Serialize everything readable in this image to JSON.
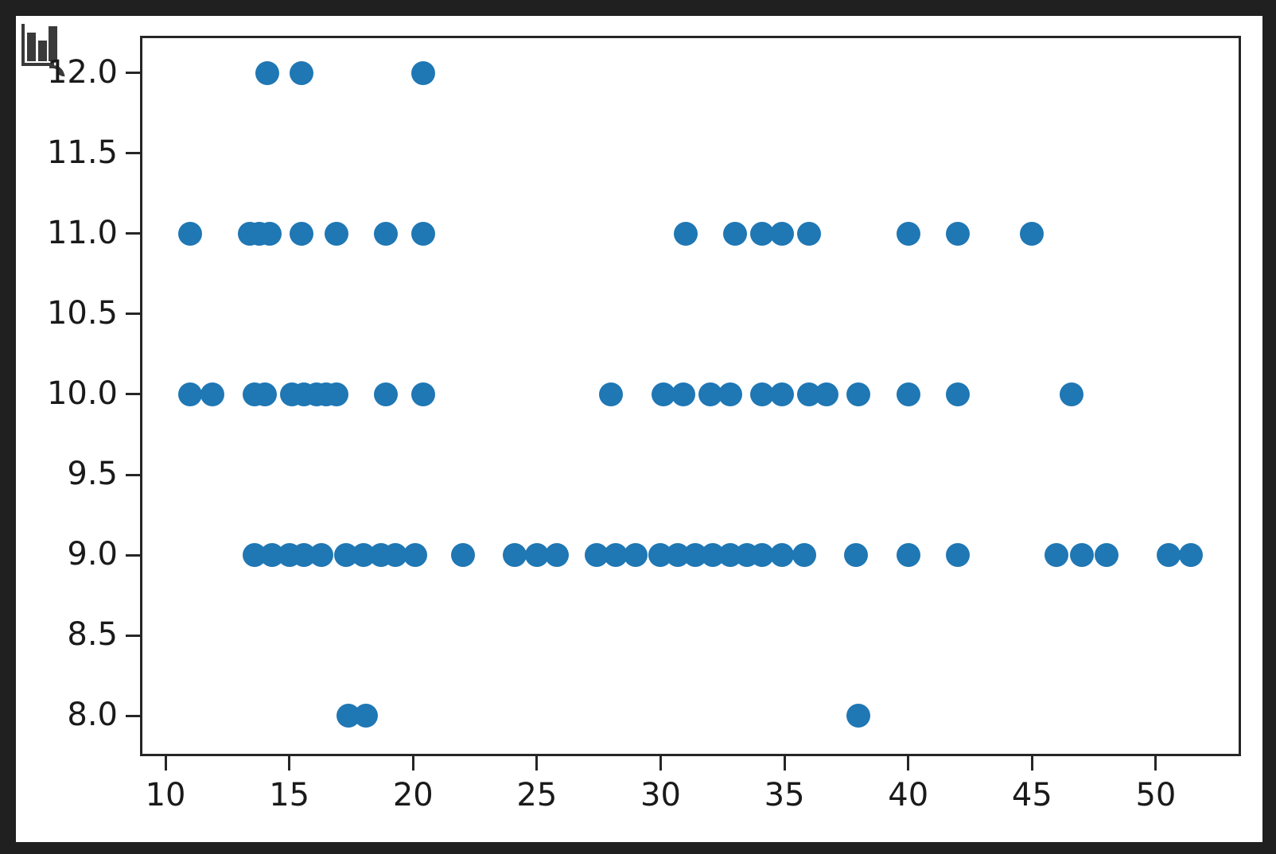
{
  "window": {
    "background_color": "#202020",
    "figure_background_color": "#ffffff"
  },
  "icon": {
    "name": "bar-chart-icon",
    "color": "#3a3a3a"
  },
  "chart_data": {
    "type": "scatter",
    "title": "",
    "xlabel": "",
    "ylabel": "",
    "legend": null,
    "grid": false,
    "marker_color": "#1f77b4",
    "marker_size_px": 30,
    "axis_color": "#262626",
    "tick_label_color": "#1a1a1a",
    "xlim": [
      8.97,
      53.44
    ],
    "ylim": [
      7.75,
      12.23
    ],
    "x_tick_values": [
      10,
      15,
      20,
      25,
      30,
      35,
      40,
      45,
      50
    ],
    "x_tick_labels": [
      "10",
      "15",
      "20",
      "25",
      "30",
      "35",
      "40",
      "45",
      "50"
    ],
    "y_tick_values": [
      8.0,
      8.5,
      9.0,
      9.5,
      10.0,
      10.5,
      11.0,
      11.5,
      12.0
    ],
    "y_tick_labels": [
      "8.0",
      "8.5",
      "9.0",
      "9.5",
      "10.0",
      "10.5",
      "11.0",
      "11.5",
      "12.0"
    ],
    "points": [
      [
        14.1,
        12
      ],
      [
        15.5,
        12
      ],
      [
        20.4,
        12
      ],
      [
        11,
        11
      ],
      [
        13.4,
        11
      ],
      [
        13.8,
        11
      ],
      [
        14.2,
        11
      ],
      [
        15.5,
        11
      ],
      [
        16.9,
        11
      ],
      [
        18.9,
        11
      ],
      [
        20.4,
        11
      ],
      [
        31,
        11
      ],
      [
        33,
        11
      ],
      [
        34.1,
        11
      ],
      [
        34.9,
        11
      ],
      [
        36,
        11
      ],
      [
        40,
        11
      ],
      [
        42,
        11
      ],
      [
        45,
        11
      ],
      [
        11,
        10
      ],
      [
        11.9,
        10
      ],
      [
        13.6,
        10
      ],
      [
        14,
        10
      ],
      [
        15.1,
        10
      ],
      [
        15.6,
        10
      ],
      [
        16.1,
        10
      ],
      [
        16.5,
        10
      ],
      [
        16.9,
        10
      ],
      [
        18.9,
        10
      ],
      [
        20.4,
        10
      ],
      [
        28,
        10
      ],
      [
        30.1,
        10
      ],
      [
        30.9,
        10
      ],
      [
        32,
        10
      ],
      [
        32.8,
        10
      ],
      [
        34.1,
        10
      ],
      [
        34.9,
        10
      ],
      [
        36,
        10
      ],
      [
        36.7,
        10
      ],
      [
        38,
        10
      ],
      [
        40,
        10
      ],
      [
        42,
        10
      ],
      [
        46.6,
        10
      ],
      [
        13.6,
        9
      ],
      [
        14.3,
        9
      ],
      [
        15,
        9
      ],
      [
        15.6,
        9
      ],
      [
        16.3,
        9
      ],
      [
        17.3,
        9
      ],
      [
        18,
        9
      ],
      [
        18.7,
        9
      ],
      [
        19.3,
        9
      ],
      [
        20.1,
        9
      ],
      [
        22,
        9
      ],
      [
        24.1,
        9
      ],
      [
        25,
        9
      ],
      [
        25.8,
        9
      ],
      [
        27.4,
        9
      ],
      [
        28.2,
        9
      ],
      [
        29,
        9
      ],
      [
        30,
        9
      ],
      [
        30.7,
        9
      ],
      [
        31.4,
        9
      ],
      [
        32.1,
        9
      ],
      [
        32.8,
        9
      ],
      [
        33.5,
        9
      ],
      [
        34.1,
        9
      ],
      [
        34.9,
        9
      ],
      [
        35.8,
        9
      ],
      [
        37.9,
        9
      ],
      [
        40,
        9
      ],
      [
        42,
        9
      ],
      [
        46,
        9
      ],
      [
        47,
        9
      ],
      [
        48,
        9
      ],
      [
        50.5,
        9
      ],
      [
        51.4,
        9
      ],
      [
        17.4,
        8
      ],
      [
        18.1,
        8
      ],
      [
        38,
        8
      ]
    ]
  }
}
